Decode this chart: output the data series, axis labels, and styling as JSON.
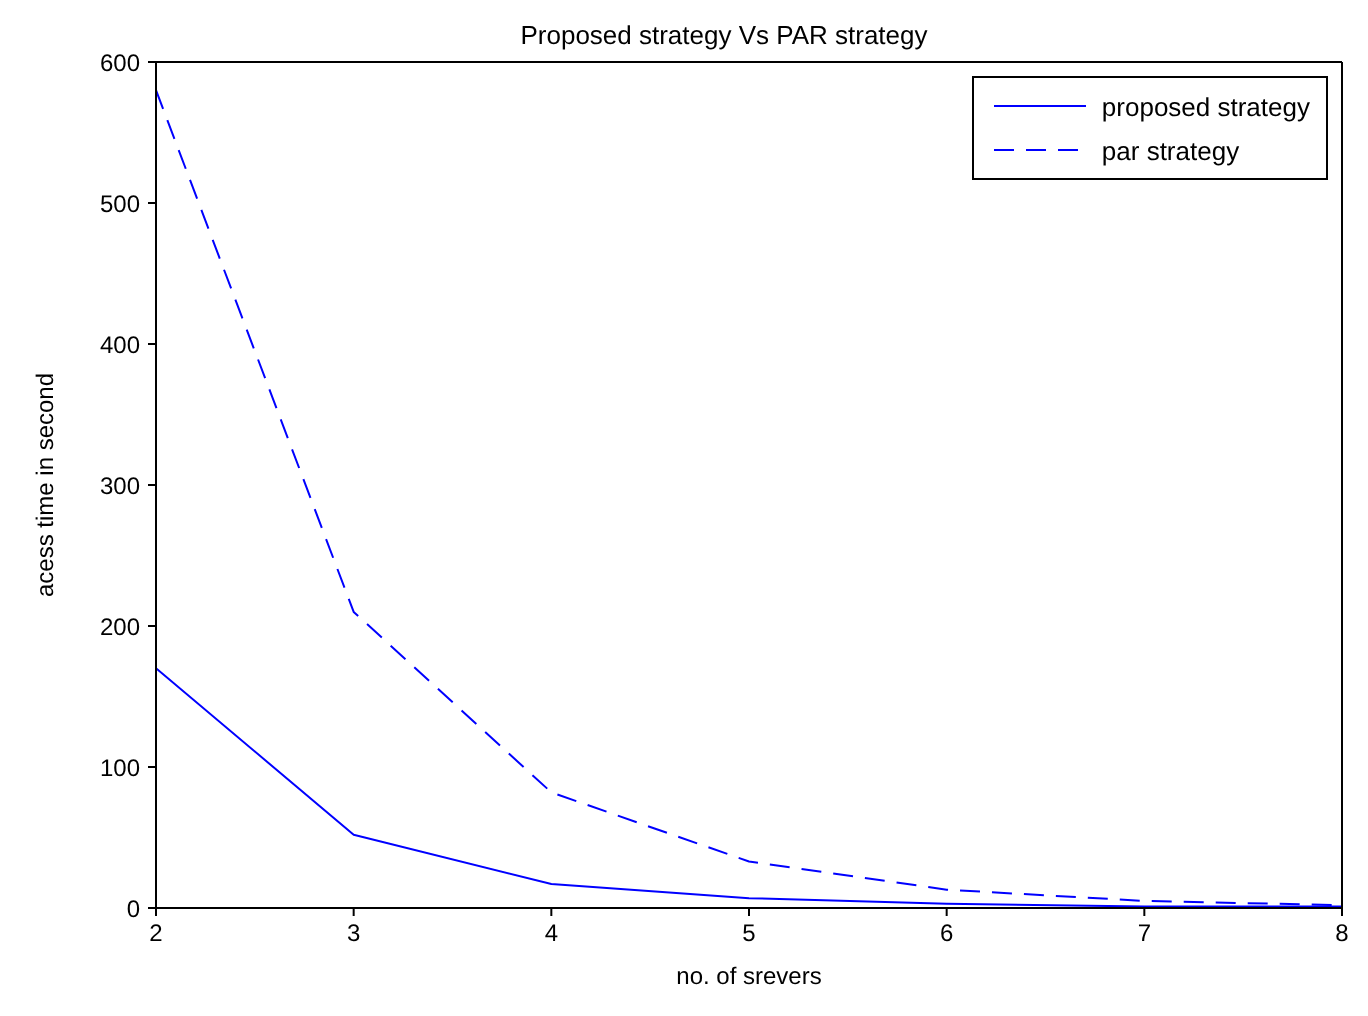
{
  "chart_data": {
    "type": "line",
    "title": "Proposed strategy Vs PAR strategy",
    "xlabel": "no. of srevers",
    "ylabel": "acess time in second",
    "x": [
      2,
      3,
      4,
      5,
      6,
      7,
      8
    ],
    "series": [
      {
        "name": "proposed strategy",
        "color": "#0000ff",
        "line_style": "solid",
        "values": [
          170,
          52,
          17,
          7,
          3,
          1,
          1
        ]
      },
      {
        "name": "par strategy",
        "color": "#0000ff",
        "line_style": "dashed",
        "values": [
          580,
          210,
          82,
          33,
          13,
          5,
          2
        ]
      }
    ],
    "xlim": [
      2,
      8
    ],
    "xticks": [
      2,
      3,
      4,
      5,
      6,
      7,
      8
    ],
    "ylim": [
      0,
      600
    ],
    "yticks": [
      0,
      100,
      200,
      300,
      400,
      500,
      600
    ],
    "grid": false,
    "legend": "top right",
    "marker": "none"
  }
}
